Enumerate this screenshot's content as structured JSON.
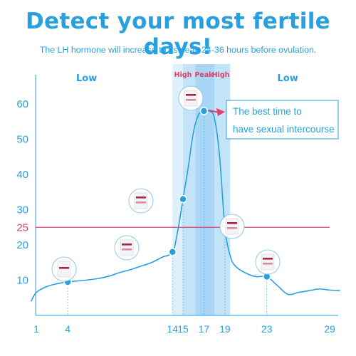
{
  "header": {
    "title": "Detect your most fertile days!",
    "subtitle": "The LH hormone will increase to its peak 24-36 hours before ovulation."
  },
  "colors": {
    "accent": "#2a9fe0",
    "curve": "#2a9fe0",
    "threshold": "#e0406a",
    "phase_label_high": "#e0406a",
    "zone_light": "#dff0fc",
    "zone_mid": "#c3e3f8",
    "zone_peak": "#a9d6f4",
    "strip_line": "#a3283d"
  },
  "chart_data": {
    "type": "line",
    "title": "",
    "xlabel": "",
    "ylabel": "",
    "x_ticks": [
      1,
      4,
      14,
      15,
      17,
      19,
      23,
      29
    ],
    "y_ticks": [
      10,
      20,
      25,
      30,
      40,
      50,
      60
    ],
    "xlim": [
      0.5,
      30
    ],
    "ylim": [
      0,
      70
    ],
    "grid": false,
    "threshold": {
      "value": 25,
      "label": "25"
    },
    "series": [
      {
        "x": [
          0.5,
          1,
          2,
          3,
          4,
          5,
          6,
          7,
          8,
          9,
          10,
          11,
          12,
          13,
          14,
          14.5,
          15,
          15.5,
          16,
          16.5,
          17,
          17.5,
          18,
          18.5,
          19,
          19.5,
          20,
          21,
          22,
          23,
          24,
          25,
          26,
          27,
          28,
          29,
          30
        ],
        "y": [
          4,
          6.5,
          8.2,
          9,
          9.5,
          9.8,
          10.1,
          10.5,
          11.2,
          12.2,
          13,
          14,
          15,
          16.5,
          18,
          24,
          33,
          42,
          52,
          57,
          58,
          58,
          56,
          45,
          25,
          17,
          14,
          12,
          11,
          11,
          8.5,
          6,
          6.5,
          7,
          7.5,
          7.2,
          7
        ],
        "markers": [
          {
            "x": 4,
            "y": 9.5
          },
          {
            "x": 14,
            "y": 18
          },
          {
            "x": 15,
            "y": 33
          },
          {
            "x": 17,
            "y": 58
          },
          {
            "x": 19,
            "y": 25
          },
          {
            "x": 23,
            "y": 11
          }
        ]
      }
    ],
    "zones": [
      {
        "from": 14,
        "to": 19.5,
        "label": "High",
        "shade": "light"
      },
      {
        "from": 15,
        "to": 19.5,
        "label": "Peak",
        "shade": "mid"
      },
      {
        "from": 16.2,
        "to": 18,
        "label": "High",
        "shade": "peak"
      }
    ],
    "phase_labels": [
      {
        "text": "Low",
        "x": 5.8,
        "kind": "low"
      },
      {
        "text": "High",
        "x": 15,
        "kind": "high"
      },
      {
        "text": "Peak",
        "x": 17,
        "kind": "high"
      },
      {
        "text": "High",
        "x": 18.6,
        "kind": "high"
      },
      {
        "text": "Low",
        "x": 25,
        "kind": "low"
      }
    ],
    "annotation": {
      "lines": [
        "The best time to",
        "have sexual intercourse"
      ],
      "points_to": {
        "x": 17,
        "y": 58
      }
    },
    "test_strips": [
      {
        "x": 4,
        "lines": 1
      },
      {
        "x": 14,
        "lines": 2
      },
      {
        "x": 15,
        "lines": 2
      },
      {
        "x": 17,
        "lines": 2
      },
      {
        "x": 19,
        "lines": 2
      },
      {
        "x": 23,
        "lines": 2
      }
    ]
  }
}
